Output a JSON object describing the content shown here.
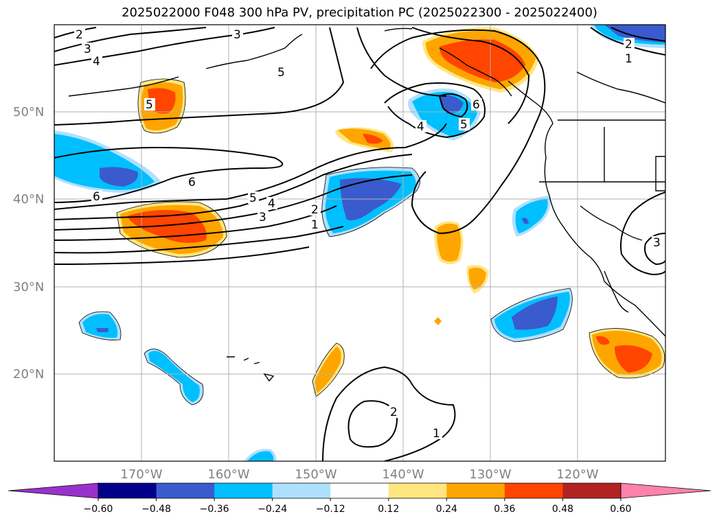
{
  "title": "2025022000 F048 300 hPa PV, precipitation PC (2025022300 - 2025022400)",
  "map": {
    "lat_labels": [
      "50°N",
      "40°N",
      "30°N",
      "20°N"
    ],
    "lon_labels": [
      "170°W",
      "160°W",
      "150°W",
      "140°W",
      "130°W",
      "120°W"
    ],
    "contour_labels": [
      "2",
      "3",
      "4",
      "3",
      "5",
      "5",
      "6",
      "6",
      "6",
      "4",
      "5",
      "5",
      "4",
      "3",
      "2",
      "1",
      "2",
      "1",
      "2",
      "1",
      "3"
    ]
  },
  "colorbar": {
    "colors": [
      "#9932cc",
      "#00008b",
      "#3a5bcd",
      "#00bfff",
      "#b0e0ff",
      "#ffffff",
      "#ffe680",
      "#ffa500",
      "#ff4500",
      "#b22222",
      "#ff82ab"
    ],
    "ticks": [
      "−0.60",
      "−0.48",
      "−0.36",
      "−0.24",
      "−0.12",
      "0.12",
      "0.24",
      "0.36",
      "0.48",
      "0.60"
    ]
  }
}
